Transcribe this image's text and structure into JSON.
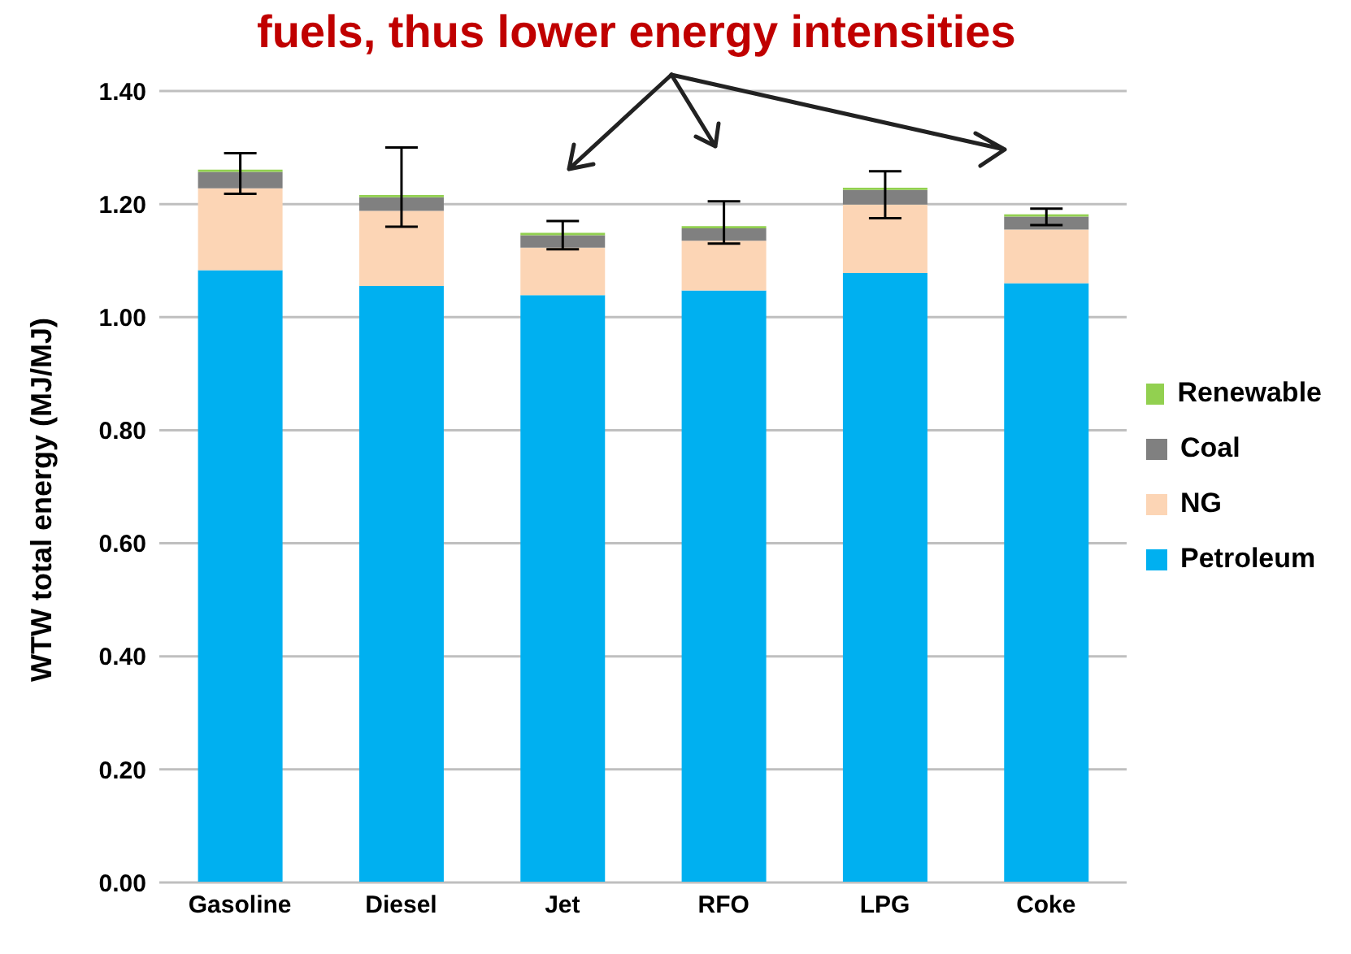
{
  "chart_data": {
    "type": "bar",
    "title": "fuels, thus lower energy intensities",
    "ylabel": "WTW total energy (MJ/MJ)",
    "categories": [
      "Gasoline",
      "Diesel",
      "Jet",
      "RFO",
      "LPG",
      "Coke"
    ],
    "stacked": true,
    "series": [
      {
        "name": "Petroleum",
        "color": "#00b0f0",
        "values": [
          1.083,
          1.055,
          1.039,
          1.047,
          1.078,
          1.06
        ]
      },
      {
        "name": "NG",
        "color": "#fcd5b5",
        "values": [
          0.145,
          0.133,
          0.084,
          0.088,
          0.121,
          0.095
        ]
      },
      {
        "name": "Coal",
        "color": "#808080",
        "values": [
          0.029,
          0.024,
          0.022,
          0.022,
          0.026,
          0.023
        ]
      },
      {
        "name": "Renewable",
        "color": "#92d050",
        "values": [
          0.004,
          0.004,
          0.004,
          0.004,
          0.004,
          0.004
        ],
        "errors": [
          [
            1.218,
            1.29
          ],
          [
            1.16,
            1.3
          ],
          [
            1.12,
            1.17
          ],
          [
            1.13,
            1.205
          ],
          [
            1.175,
            1.258
          ],
          [
            1.163,
            1.192
          ]
        ]
      }
    ],
    "ylim": [
      0,
      1.4
    ],
    "yticks": [
      {
        "value": 0,
        "label": "0.00"
      },
      {
        "value": 0.2,
        "label": "0.20"
      },
      {
        "value": 0.4,
        "label": "0.40"
      },
      {
        "value": 0.6,
        "label": "0.60"
      },
      {
        "value": 0.8,
        "label": "0.80"
      },
      {
        "value": 1,
        "label": "1.00"
      },
      {
        "value": 1.2,
        "label": "1.20"
      },
      {
        "value": 1.4,
        "label": "1.40"
      }
    ],
    "grid": "y",
    "legend": "right"
  }
}
